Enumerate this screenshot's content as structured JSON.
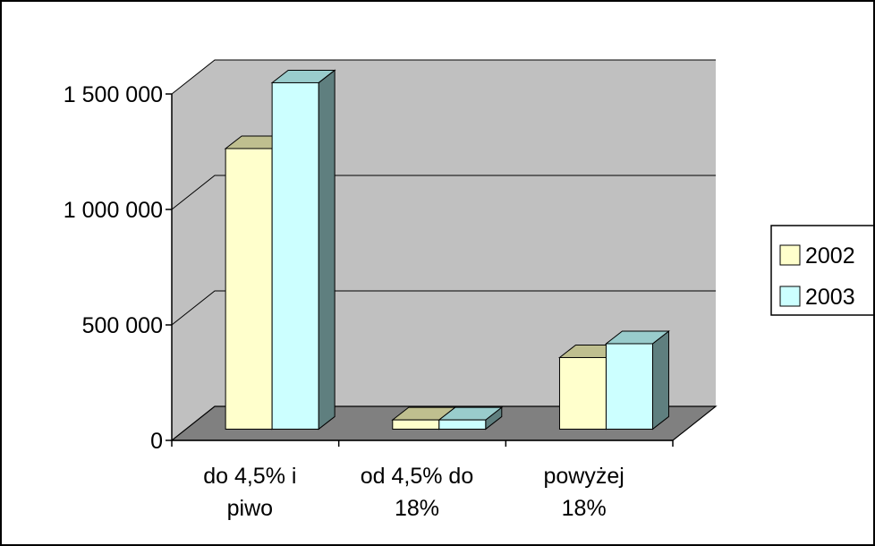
{
  "chart_data": {
    "type": "bar",
    "categories": [
      [
        "do 4,5% i",
        "piwo"
      ],
      [
        "od 4,5% do",
        "18%"
      ],
      [
        "powyżej",
        "18%"
      ]
    ],
    "series": [
      {
        "name": "2002",
        "values": [
          1215000,
          40000,
          310000
        ],
        "color": "#FFFFCC"
      },
      {
        "name": "2003",
        "values": [
          1500000,
          40000,
          370000
        ],
        "color": "#CCFFFF"
      }
    ],
    "ylim": [
      0,
      1500000
    ],
    "yticks": [
      {
        "value": 0,
        "label": "0"
      },
      {
        "value": 500000,
        "label": "500 000"
      },
      {
        "value": 1000000,
        "label": "1 000 000"
      },
      {
        "value": 1500000,
        "label": "1 500 000"
      }
    ],
    "grid": true,
    "style": "3d-clustered-column",
    "legend": {
      "position": "right",
      "entries": [
        "2002",
        "2003"
      ]
    },
    "colors": {
      "walls": "#C0C0C0",
      "floor": "#808080",
      "bar_side": "#5F7F7F",
      "bar_top": "#BFBF8F"
    }
  }
}
